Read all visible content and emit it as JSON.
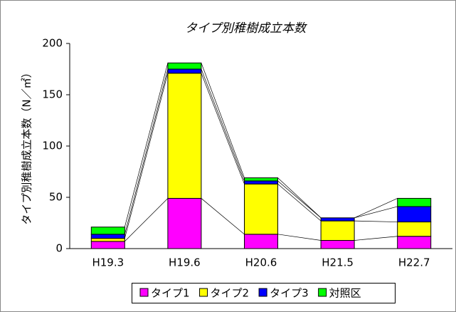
{
  "chart_data": {
    "type": "stacked_bar",
    "title": "タイプ別稚樹成立本数",
    "y_label": "タイプ別稚樹成立本数（N／㎡）",
    "categories": [
      "H19.3",
      "H19.6",
      "H20.6",
      "H21.5",
      "H22.7"
    ],
    "series": [
      {
        "name": "タイプ1",
        "color": "#ff00ff",
        "values": [
          7,
          49,
          14,
          8,
          12
        ]
      },
      {
        "name": "タイプ2",
        "color": "#ffff00",
        "values": [
          3,
          122,
          49,
          19,
          14
        ]
      },
      {
        "name": "タイプ3",
        "color": "#0000ff",
        "values": [
          4,
          4,
          3,
          3,
          15
        ]
      },
      {
        "name": "対照区",
        "color": "#00ff00",
        "values": [
          7,
          6,
          3,
          0,
          8
        ]
      }
    ],
    "ylim": [
      0,
      200
    ],
    "yticks": [
      0,
      50,
      100,
      150,
      200
    ]
  }
}
